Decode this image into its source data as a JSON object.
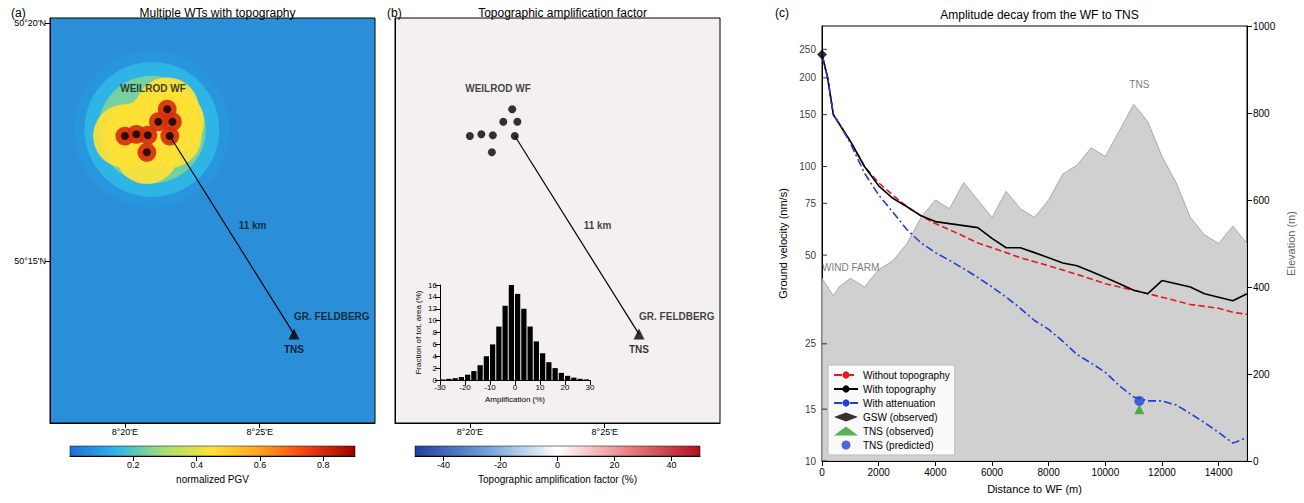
{
  "chart_data": [
    {
      "type": "map",
      "panel": "(a)",
      "title": "Multiple WTs with topography",
      "xlim": [
        8.287,
        8.488
      ],
      "xticks": [
        {
          "value": 8.3333,
          "label": "8°20'E"
        },
        {
          "value": 8.4167,
          "label": "8°25'E"
        }
      ],
      "ylim": [
        50.1933,
        50.335
      ],
      "yticks": [
        {
          "value": 50.25,
          "label": "50°15'N"
        },
        {
          "value": 50.3333,
          "label": "50°20'N"
        }
      ],
      "grid": false,
      "turbines": [
        [
          8.3595,
          50.3031
        ],
        [
          8.354,
          50.2987
        ],
        [
          8.3627,
          50.2987
        ],
        [
          8.3611,
          50.2937
        ],
        [
          8.3333,
          50.2937
        ],
        [
          8.3404,
          50.2943
        ],
        [
          8.3475,
          50.294
        ],
        [
          8.3469,
          50.288
        ]
      ],
      "station": {
        "name": "TNS",
        "lon": 8.4379,
        "lat": 50.2244
      },
      "path": [
        [
          8.3611,
          50.2937
        ],
        [
          8.4379,
          50.2244
        ]
      ],
      "path_label": {
        "text": "11 km",
        "lon": 8.4123,
        "lat": 50.2624
      },
      "labels": [
        {
          "text": "WEILROD WF",
          "lon": 8.3507,
          "lat": 50.3105
        },
        {
          "text": "GR. FELDBERG",
          "lon": 8.4613,
          "lat": 50.2305
        }
      ],
      "pgv_field": [
        [
          8.35,
          50.296,
          0.08
        ],
        [
          8.35,
          50.296,
          0.15
        ],
        [
          8.35,
          50.296,
          0.25
        ],
        [
          8.3595,
          50.3031,
          0.45
        ],
        [
          8.354,
          50.2987,
          0.45
        ],
        [
          8.3627,
          50.2987,
          0.45
        ],
        [
          8.3611,
          50.2937,
          0.45
        ],
        [
          8.3333,
          50.2937,
          0.45
        ],
        [
          8.3404,
          50.2943,
          0.45
        ],
        [
          8.3475,
          50.294,
          0.45
        ],
        [
          8.3469,
          50.288,
          0.45
        ],
        [
          8.3595,
          50.3031,
          0.8
        ],
        [
          8.354,
          50.2987,
          0.8
        ],
        [
          8.3627,
          50.2987,
          0.8
        ],
        [
          8.3611,
          50.2937,
          0.8
        ],
        [
          8.3333,
          50.2937,
          0.8
        ],
        [
          8.3404,
          50.2943,
          0.8
        ],
        [
          8.3475,
          50.294,
          0.8
        ],
        [
          8.3469,
          50.288,
          0.8
        ]
      ],
      "colorbar": {
        "label": "normalized PGV",
        "range": [
          0,
          0.9
        ],
        "ticks": [
          0.2,
          0.4,
          0.6,
          0.8
        ]
      }
    },
    {
      "type": "map",
      "panel": "(b)",
      "title": "Topographic amplification factor",
      "xlim": [
        8.287,
        8.488
      ],
      "xticks": [
        {
          "value": 8.3333,
          "label": "8°20'E"
        },
        {
          "value": 8.4167,
          "label": "8°25'E"
        }
      ],
      "ylim": [
        50.1933,
        50.335
      ],
      "yticks": [
        {
          "value": 50.25,
          "label": "50°15'N"
        },
        {
          "value": 50.3333,
          "label": "50°20'N"
        }
      ],
      "tick_labels": "x",
      "grid": false,
      "turbines": [
        [
          8.3595,
          50.3031
        ],
        [
          8.354,
          50.2987
        ],
        [
          8.3627,
          50.2987
        ],
        [
          8.3611,
          50.2937
        ],
        [
          8.3333,
          50.2937
        ],
        [
          8.3404,
          50.2943
        ],
        [
          8.3475,
          50.294
        ],
        [
          8.3469,
          50.288
        ]
      ],
      "station": {
        "name": "TNS",
        "lon": 8.4379,
        "lat": 50.2244
      },
      "path": [
        [
          8.3611,
          50.2937
        ],
        [
          8.4379,
          50.2244
        ]
      ],
      "path_label": {
        "text": "11 km",
        "lon": 8.4123,
        "lat": 50.2624
      },
      "labels": [
        {
          "text": "WEILROD WF",
          "lon": 8.3507,
          "lat": 50.3105
        },
        {
          "text": "GR. FELDBERG",
          "lon": 8.4613,
          "lat": 50.2305
        }
      ],
      "colorbar": {
        "label": "Topographic amplification factor (%)",
        "range": [
          -50,
          50
        ],
        "ticks": [
          -40,
          -20,
          0,
          20,
          40
        ]
      },
      "inset": {
        "type": "histogram",
        "xlabel": "Amplification (%)",
        "ylabel": "Fraction of tot. area (%)",
        "bins": [
          -30,
          -27.5,
          -25,
          -22.5,
          -20,
          -17.5,
          -15,
          -12.5,
          -10,
          -7.5,
          -5,
          -2.5,
          0,
          2.5,
          5,
          7.5,
          10,
          12.5,
          15,
          17.5,
          20,
          22.5,
          25,
          27.5,
          30
        ],
        "counts": [
          0.1,
          0.2,
          0.3,
          0.5,
          0.9,
          1.5,
          2.5,
          4,
          6,
          9,
          12.5,
          16,
          14.5,
          12,
          9,
          6.5,
          4.5,
          3,
          2,
          1.2,
          0.7,
          0.4,
          0.2,
          0.1
        ],
        "color": "#000000",
        "xlim": [
          -30,
          30
        ],
        "xticks": [
          -30,
          -20,
          -10,
          0,
          10,
          20,
          30
        ],
        "ylim": [
          0,
          16
        ],
        "yticks": [
          0,
          2,
          4,
          6,
          8,
          10,
          12,
          14,
          16
        ],
        "grid": false
      }
    },
    {
      "type": "line",
      "panel": "(c)",
      "title": "Amplitude decay from the WF to TNS",
      "xlabel": "Distance to WF (m)",
      "ylabel": "Ground velocity (nm/s)",
      "y2label": "Elevation (m)",
      "x": [
        0,
        200,
        400,
        600,
        1000,
        1500,
        2000,
        2500,
        3000,
        3500,
        4000,
        4500,
        5000,
        5500,
        6000,
        6500,
        7000,
        7500,
        8000,
        8500,
        9000,
        9500,
        10000,
        10500,
        11000,
        11500,
        12000,
        12500,
        13000,
        13500,
        14000,
        14500,
        15000
      ],
      "series": [
        {
          "name": "Without topography",
          "color": "#e41a1c",
          "line_style": "dashed",
          "values": [
            240,
            200,
            150,
            140,
            122,
            100,
            88,
            80,
            73,
            68,
            64,
            61,
            58,
            55,
            53,
            51,
            49,
            47.5,
            46,
            44.5,
            43,
            41.5,
            40,
            39,
            38,
            37,
            36,
            35,
            34,
            33.5,
            33,
            32,
            31.5
          ]
        },
        {
          "name": "With topography",
          "color": "#000000",
          "line_style": "solid",
          "values": [
            240,
            200,
            150,
            140,
            122,
            100,
            86,
            78,
            73,
            68,
            65,
            64,
            63,
            62,
            57,
            53,
            53,
            51,
            49,
            47,
            46,
            44,
            42,
            40,
            38,
            37,
            41,
            40,
            39,
            37,
            36,
            35,
            37
          ]
        },
        {
          "name": "With attenuation",
          "color": "#1f3fd8",
          "line_style": "dashdot",
          "values": [
            240,
            200,
            150,
            140,
            120,
            95,
            80,
            70,
            61,
            55,
            51,
            48,
            45,
            42,
            39,
            36,
            33,
            30,
            28,
            25.5,
            23,
            21.5,
            20,
            18,
            16.5,
            16,
            16,
            15.5,
            14.5,
            13.5,
            12.5,
            11.5,
            12
          ]
        }
      ],
      "elevation": {
        "color": "#c8c8c8",
        "axis": "y2",
        "values": [
          420,
          400,
          380,
          400,
          420,
          400,
          440,
          460,
          500,
          560,
          600,
          580,
          640,
          600,
          560,
          620,
          580,
          560,
          600,
          660,
          680,
          720,
          700,
          760,
          820,
          780,
          700,
          640,
          560,
          520,
          500,
          540,
          500
        ]
      },
      "points": [
        {
          "name": "GSW (observed)",
          "x": 0,
          "y": 240,
          "color": "#000000",
          "marker": "diamond"
        },
        {
          "name": "TNS (observed)",
          "x": 11200,
          "y": 15,
          "color": "#2ca02c",
          "marker": "triangle"
        },
        {
          "name": "TNS (predicted)",
          "x": 11200,
          "y": 16,
          "color": "#1f3fd8",
          "marker": "circle"
        }
      ],
      "annotations": [
        {
          "text": "WIND FARM",
          "x": 0,
          "y": 420,
          "axis": "y2"
        },
        {
          "text": "TNS",
          "x": 11200,
          "y": 840,
          "axis": "y2"
        }
      ],
      "xlim": [
        0,
        15000
      ],
      "xticks": [
        0,
        2000,
        4000,
        6000,
        8000,
        10000,
        12000,
        14000
      ],
      "ylim": [
        10,
        300
      ],
      "yticks": [
        10,
        15,
        25,
        50,
        75,
        100,
        150,
        200,
        250
      ],
      "y2lim": [
        0,
        1000
      ],
      "y2ticks": [
        0,
        200,
        400,
        600,
        800,
        1000
      ],
      "log": "y",
      "legend": "lower left",
      "grid": false
    }
  ]
}
